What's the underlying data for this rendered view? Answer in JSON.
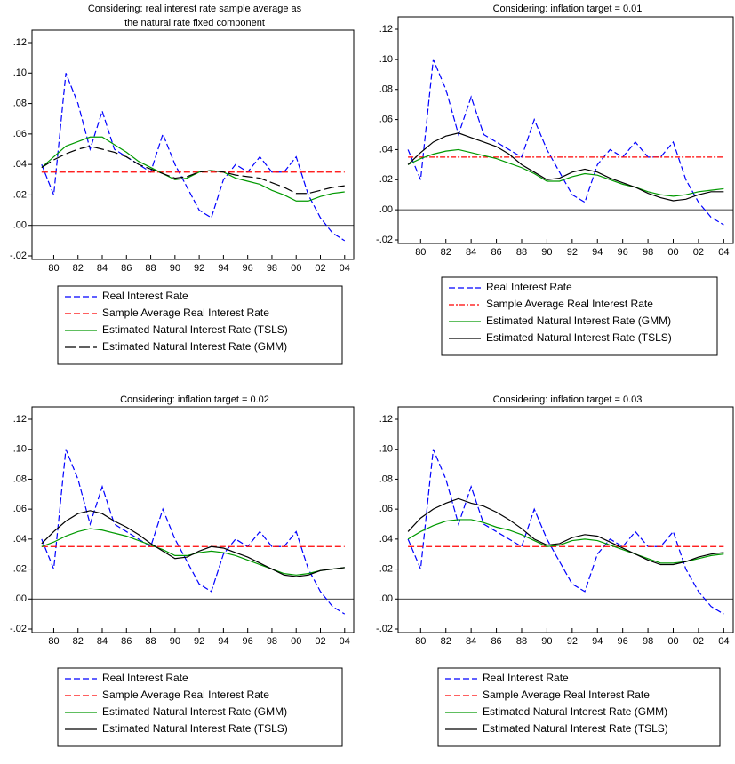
{
  "chart_data": [
    {
      "type": "line",
      "title": [
        "Considering: real interest rate sample average as",
        "the natural rate fixed component"
      ],
      "x": [
        1979,
        1980,
        1981,
        1982,
        1983,
        1984,
        1985,
        1986,
        1987,
        1988,
        1989,
        1990,
        1991,
        1992,
        1993,
        1994,
        1995,
        1996,
        1997,
        1998,
        1999,
        2000,
        2001,
        2002,
        2003,
        2004
      ],
      "xlim": [
        1978.5,
        2004.75
      ],
      "xticks": [
        {
          "value": 1980,
          "label": "80"
        },
        {
          "value": 1982,
          "label": "82"
        },
        {
          "value": 1984,
          "label": "84"
        },
        {
          "value": 1986,
          "label": "86"
        },
        {
          "value": 1988,
          "label": "88"
        },
        {
          "value": 1990,
          "label": "90"
        },
        {
          "value": 1992,
          "label": "92"
        },
        {
          "value": 1994,
          "label": "94"
        },
        {
          "value": 1996,
          "label": "96"
        },
        {
          "value": 1998,
          "label": "98"
        },
        {
          "value": 2000,
          "label": "00"
        },
        {
          "value": 2002,
          "label": "02"
        },
        {
          "value": 2004,
          "label": "04"
        }
      ],
      "ylim": [
        -0.02,
        0.12
      ],
      "yticks": [
        {
          "value": -0.02,
          "label": "-.02"
        },
        {
          "value": 0,
          "label": ".00"
        },
        {
          "value": 0.02,
          "label": ".02"
        },
        {
          "value": 0.04,
          "label": ".04"
        },
        {
          "value": 0.06,
          "label": ".06"
        },
        {
          "value": 0.08,
          "label": ".08"
        },
        {
          "value": 0.1,
          "label": ".10"
        },
        {
          "value": 0.12,
          "label": ".12"
        }
      ],
      "zero_line": true,
      "series": [
        {
          "name": "Real Interest Rate",
          "color": "#0000ff",
          "style": "dashed",
          "values": [
            0.04,
            0.02,
            0.1,
            0.08,
            0.05,
            0.075,
            0.05,
            0.045,
            0.04,
            0.035,
            0.06,
            0.04,
            0.025,
            0.01,
            0.005,
            0.03,
            0.04,
            0.035,
            0.045,
            0.035,
            0.035,
            0.045,
            0.02,
            0.005,
            -0.005,
            -0.01
          ]
        },
        {
          "name": "Sample Average Real Interest Rate",
          "color": "#ff0000",
          "style": "dashed",
          "values": [
            0.035,
            0.035,
            0.035,
            0.035,
            0.035,
            0.035,
            0.035,
            0.035,
            0.035,
            0.035,
            0.035,
            0.035,
            0.035,
            0.035,
            0.035,
            0.035,
            0.035,
            0.035,
            0.035,
            0.035,
            0.035,
            0.035,
            0.035,
            0.035,
            0.035,
            0.035
          ]
        },
        {
          "name": "Estimated Natural Interest Rate (TSLS)",
          "color": "#009900",
          "style": "solid",
          "values": [
            0.038,
            0.045,
            0.052,
            0.055,
            0.058,
            0.058,
            0.053,
            0.048,
            0.042,
            0.038,
            0.034,
            0.03,
            0.031,
            0.035,
            0.036,
            0.035,
            0.031,
            0.029,
            0.027,
            0.023,
            0.02,
            0.016,
            0.016,
            0.019,
            0.021,
            0.022
          ]
        },
        {
          "name": "Estimated Natural Interest Rate (GMM)",
          "color": "#000000",
          "style": "longdash",
          "values": [
            0.038,
            0.043,
            0.047,
            0.05,
            0.052,
            0.05,
            0.048,
            0.045,
            0.04,
            0.037,
            0.034,
            0.031,
            0.032,
            0.035,
            0.036,
            0.035,
            0.033,
            0.032,
            0.031,
            0.028,
            0.025,
            0.021,
            0.021,
            0.023,
            0.025,
            0.026
          ]
        }
      ]
    },
    {
      "type": "line",
      "title": [
        "Considering: inflation target = 0.01"
      ],
      "x": [
        1979,
        1980,
        1981,
        1982,
        1983,
        1984,
        1985,
        1986,
        1987,
        1988,
        1989,
        1990,
        1991,
        1992,
        1993,
        1994,
        1995,
        1996,
        1997,
        1998,
        1999,
        2000,
        2001,
        2002,
        2003,
        2004
      ],
      "xlim": [
        1978.5,
        2004.75
      ],
      "xticks": [
        {
          "value": 1980,
          "label": "80"
        },
        {
          "value": 1982,
          "label": "82"
        },
        {
          "value": 1984,
          "label": "84"
        },
        {
          "value": 1986,
          "label": "86"
        },
        {
          "value": 1988,
          "label": "88"
        },
        {
          "value": 1990,
          "label": "90"
        },
        {
          "value": 1992,
          "label": "92"
        },
        {
          "value": 1994,
          "label": "94"
        },
        {
          "value": 1996,
          "label": "96"
        },
        {
          "value": 1998,
          "label": "98"
        },
        {
          "value": 2000,
          "label": "00"
        },
        {
          "value": 2002,
          "label": "02"
        },
        {
          "value": 2004,
          "label": "04"
        }
      ],
      "ylim": [
        -0.02,
        0.12
      ],
      "yticks": [
        {
          "value": -0.02,
          "label": "-.02"
        },
        {
          "value": 0,
          "label": ".00"
        },
        {
          "value": 0.02,
          "label": ".02"
        },
        {
          "value": 0.04,
          "label": ".04"
        },
        {
          "value": 0.06,
          "label": ".06"
        },
        {
          "value": 0.08,
          "label": ".08"
        },
        {
          "value": 0.1,
          "label": ".10"
        },
        {
          "value": 0.12,
          "label": ".12"
        }
      ],
      "zero_line": true,
      "series": [
        {
          "name": "Real Interest Rate",
          "color": "#0000ff",
          "style": "dashed",
          "values": [
            0.04,
            0.02,
            0.1,
            0.08,
            0.05,
            0.075,
            0.05,
            0.045,
            0.04,
            0.035,
            0.06,
            0.04,
            0.025,
            0.01,
            0.005,
            0.03,
            0.04,
            0.035,
            0.045,
            0.035,
            0.035,
            0.045,
            0.02,
            0.005,
            -0.005,
            -0.01
          ]
        },
        {
          "name": "Sample Average Real Interest Rate",
          "color": "#ff0000",
          "style": "dashdot",
          "values": [
            0.035,
            0.035,
            0.035,
            0.035,
            0.035,
            0.035,
            0.035,
            0.035,
            0.035,
            0.035,
            0.035,
            0.035,
            0.035,
            0.035,
            0.035,
            0.035,
            0.035,
            0.035,
            0.035,
            0.035,
            0.035,
            0.035,
            0.035,
            0.035,
            0.035,
            0.035
          ]
        },
        {
          "name": "Estimated Natural Interest Rate (GMM)",
          "color": "#009900",
          "style": "solid",
          "values": [
            0.03,
            0.034,
            0.037,
            0.039,
            0.04,
            0.038,
            0.036,
            0.034,
            0.031,
            0.028,
            0.024,
            0.019,
            0.019,
            0.022,
            0.024,
            0.023,
            0.02,
            0.017,
            0.015,
            0.012,
            0.01,
            0.009,
            0.01,
            0.012,
            0.013,
            0.014
          ]
        },
        {
          "name": "Estimated Natural Interest Rate (TSLS)",
          "color": "#000000",
          "style": "solid",
          "values": [
            0.03,
            0.038,
            0.045,
            0.049,
            0.051,
            0.048,
            0.045,
            0.042,
            0.037,
            0.03,
            0.025,
            0.02,
            0.021,
            0.025,
            0.027,
            0.025,
            0.021,
            0.018,
            0.015,
            0.011,
            0.008,
            0.006,
            0.007,
            0.01,
            0.012,
            0.012
          ]
        }
      ]
    },
    {
      "type": "line",
      "title": [
        "Considering: inflation target = 0.02"
      ],
      "x": [
        1979,
        1980,
        1981,
        1982,
        1983,
        1984,
        1985,
        1986,
        1987,
        1988,
        1989,
        1990,
        1991,
        1992,
        1993,
        1994,
        1995,
        1996,
        1997,
        1998,
        1999,
        2000,
        2001,
        2002,
        2003,
        2004
      ],
      "xlim": [
        1978.5,
        2004.75
      ],
      "xticks": [
        {
          "value": 1980,
          "label": "80"
        },
        {
          "value": 1982,
          "label": "82"
        },
        {
          "value": 1984,
          "label": "84"
        },
        {
          "value": 1986,
          "label": "86"
        },
        {
          "value": 1988,
          "label": "88"
        },
        {
          "value": 1990,
          "label": "90"
        },
        {
          "value": 1992,
          "label": "92"
        },
        {
          "value": 1994,
          "label": "94"
        },
        {
          "value": 1996,
          "label": "96"
        },
        {
          "value": 1998,
          "label": "98"
        },
        {
          "value": 2000,
          "label": "00"
        },
        {
          "value": 2002,
          "label": "02"
        },
        {
          "value": 2004,
          "label": "04"
        }
      ],
      "ylim": [
        -0.02,
        0.12
      ],
      "yticks": [
        {
          "value": -0.02,
          "label": "-.02"
        },
        {
          "value": 0,
          "label": ".00"
        },
        {
          "value": 0.02,
          "label": ".02"
        },
        {
          "value": 0.04,
          "label": ".04"
        },
        {
          "value": 0.06,
          "label": ".06"
        },
        {
          "value": 0.08,
          "label": ".08"
        },
        {
          "value": 0.1,
          "label": ".10"
        },
        {
          "value": 0.12,
          "label": ".12"
        }
      ],
      "zero_line": true,
      "series": [
        {
          "name": "Real Interest Rate",
          "color": "#0000ff",
          "style": "dashed",
          "values": [
            0.04,
            0.02,
            0.1,
            0.08,
            0.05,
            0.075,
            0.05,
            0.045,
            0.04,
            0.035,
            0.06,
            0.04,
            0.025,
            0.01,
            0.005,
            0.03,
            0.04,
            0.035,
            0.045,
            0.035,
            0.035,
            0.045,
            0.02,
            0.005,
            -0.005,
            -0.01
          ]
        },
        {
          "name": "Sample Average Real Interest Rate",
          "color": "#ff0000",
          "style": "dashed",
          "values": [
            0.035,
            0.035,
            0.035,
            0.035,
            0.035,
            0.035,
            0.035,
            0.035,
            0.035,
            0.035,
            0.035,
            0.035,
            0.035,
            0.035,
            0.035,
            0.035,
            0.035,
            0.035,
            0.035,
            0.035,
            0.035,
            0.035,
            0.035,
            0.035,
            0.035,
            0.035
          ]
        },
        {
          "name": "Estimated Natural Interest Rate (GMM)",
          "color": "#009900",
          "style": "solid",
          "values": [
            0.035,
            0.038,
            0.042,
            0.045,
            0.047,
            0.046,
            0.044,
            0.042,
            0.039,
            0.036,
            0.033,
            0.029,
            0.029,
            0.031,
            0.032,
            0.031,
            0.029,
            0.026,
            0.023,
            0.02,
            0.017,
            0.016,
            0.017,
            0.019,
            0.02,
            0.021
          ]
        },
        {
          "name": "Estimated Natural Interest Rate (TSLS)",
          "color": "#000000",
          "style": "solid",
          "values": [
            0.037,
            0.045,
            0.052,
            0.057,
            0.059,
            0.057,
            0.052,
            0.048,
            0.043,
            0.037,
            0.032,
            0.027,
            0.028,
            0.032,
            0.035,
            0.034,
            0.031,
            0.028,
            0.024,
            0.02,
            0.016,
            0.015,
            0.016,
            0.019,
            0.02,
            0.021
          ]
        }
      ]
    },
    {
      "type": "line",
      "title": [
        "Considering: inflation target = 0.03"
      ],
      "x": [
        1979,
        1980,
        1981,
        1982,
        1983,
        1984,
        1985,
        1986,
        1987,
        1988,
        1989,
        1990,
        1991,
        1992,
        1993,
        1994,
        1995,
        1996,
        1997,
        1998,
        1999,
        2000,
        2001,
        2002,
        2003,
        2004
      ],
      "xlim": [
        1978.5,
        2004.75
      ],
      "xticks": [
        {
          "value": 1980,
          "label": "80"
        },
        {
          "value": 1982,
          "label": "82"
        },
        {
          "value": 1984,
          "label": "84"
        },
        {
          "value": 1986,
          "label": "86"
        },
        {
          "value": 1988,
          "label": "88"
        },
        {
          "value": 1990,
          "label": "90"
        },
        {
          "value": 1992,
          "label": "92"
        },
        {
          "value": 1994,
          "label": "94"
        },
        {
          "value": 1996,
          "label": "96"
        },
        {
          "value": 1998,
          "label": "98"
        },
        {
          "value": 2000,
          "label": "00"
        },
        {
          "value": 2002,
          "label": "02"
        },
        {
          "value": 2004,
          "label": "04"
        }
      ],
      "ylim": [
        -0.02,
        0.12
      ],
      "yticks": [
        {
          "value": -0.02,
          "label": "-.02"
        },
        {
          "value": 0,
          "label": ".00"
        },
        {
          "value": 0.02,
          "label": ".02"
        },
        {
          "value": 0.04,
          "label": ".04"
        },
        {
          "value": 0.06,
          "label": ".06"
        },
        {
          "value": 0.08,
          "label": ".08"
        },
        {
          "value": 0.1,
          "label": ".10"
        },
        {
          "value": 0.12,
          "label": ".12"
        }
      ],
      "zero_line": true,
      "series": [
        {
          "name": "Real Interest Rate",
          "color": "#0000ff",
          "style": "dashed",
          "values": [
            0.04,
            0.02,
            0.1,
            0.08,
            0.05,
            0.075,
            0.05,
            0.045,
            0.04,
            0.035,
            0.06,
            0.04,
            0.025,
            0.01,
            0.005,
            0.03,
            0.04,
            0.035,
            0.045,
            0.035,
            0.035,
            0.045,
            0.02,
            0.005,
            -0.005,
            -0.01
          ]
        },
        {
          "name": "Sample Average Real Interest Rate",
          "color": "#ff0000",
          "style": "dashed",
          "values": [
            0.035,
            0.035,
            0.035,
            0.035,
            0.035,
            0.035,
            0.035,
            0.035,
            0.035,
            0.035,
            0.035,
            0.035,
            0.035,
            0.035,
            0.035,
            0.035,
            0.035,
            0.035,
            0.035,
            0.035,
            0.035,
            0.035,
            0.035,
            0.035,
            0.035,
            0.035
          ]
        },
        {
          "name": "Estimated Natural Interest Rate (GMM)",
          "color": "#009900",
          "style": "solid",
          "values": [
            0.04,
            0.045,
            0.049,
            0.052,
            0.053,
            0.053,
            0.051,
            0.048,
            0.046,
            0.043,
            0.039,
            0.035,
            0.036,
            0.039,
            0.04,
            0.039,
            0.036,
            0.033,
            0.03,
            0.027,
            0.024,
            0.024,
            0.025,
            0.027,
            0.029,
            0.03
          ]
        },
        {
          "name": "Estimated Natural Interest Rate (TSLS)",
          "color": "#000000",
          "style": "solid",
          "values": [
            0.045,
            0.054,
            0.06,
            0.064,
            0.067,
            0.064,
            0.062,
            0.058,
            0.053,
            0.047,
            0.04,
            0.036,
            0.037,
            0.041,
            0.043,
            0.042,
            0.038,
            0.034,
            0.03,
            0.026,
            0.023,
            0.023,
            0.025,
            0.028,
            0.03,
            0.031
          ]
        }
      ]
    }
  ]
}
